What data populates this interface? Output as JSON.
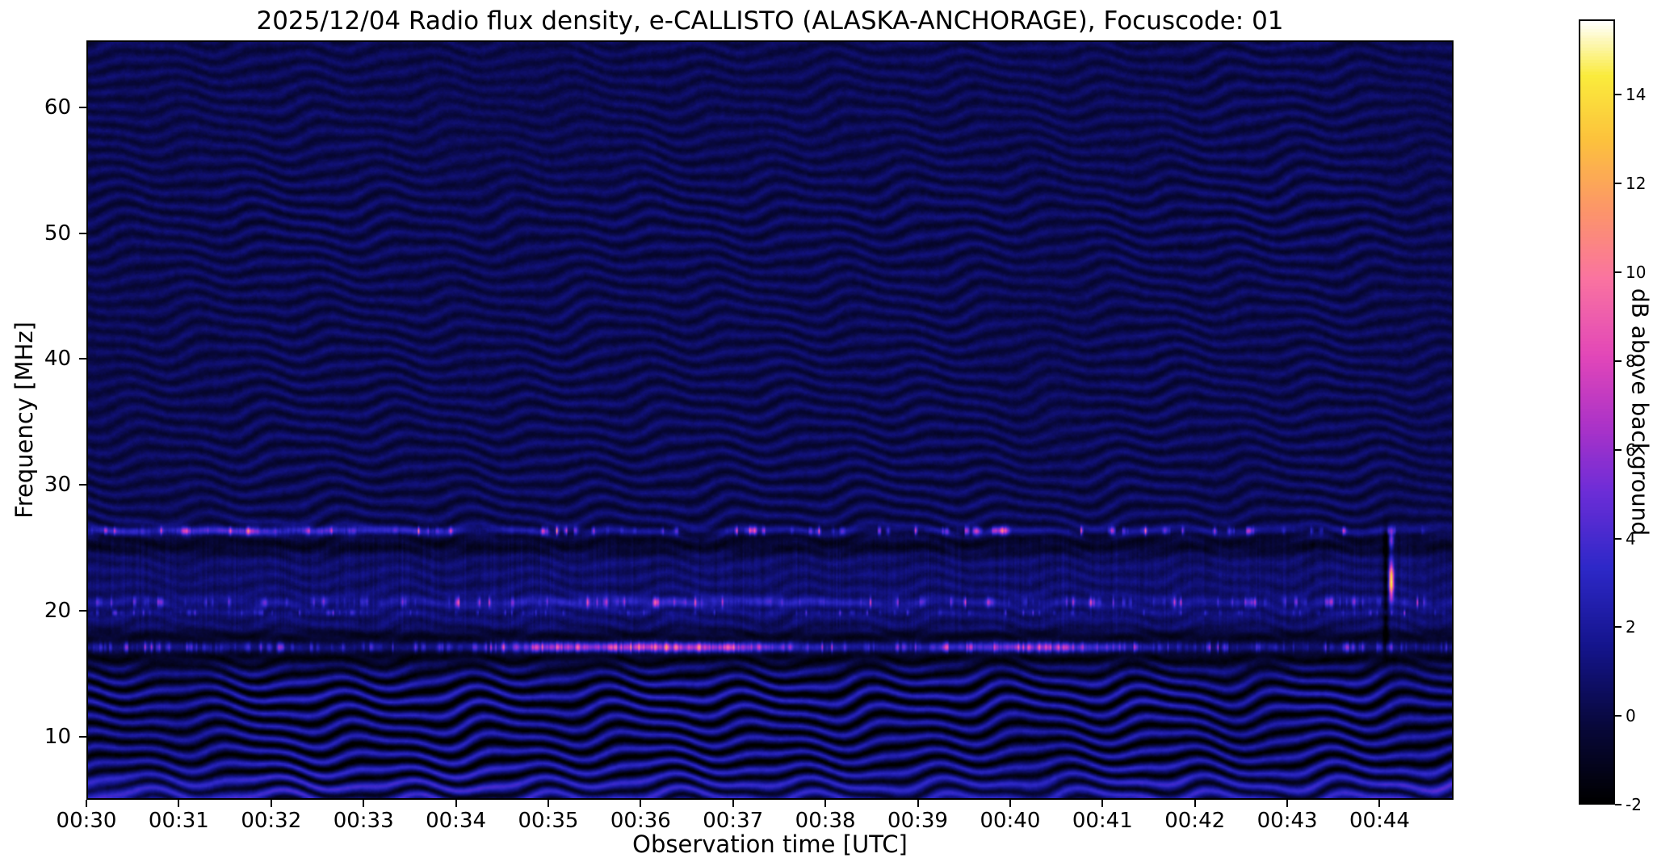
{
  "figure": {
    "date": "2025/12/04",
    "instrument": "e-CALLISTO",
    "station": "ALASKA-ANCHORAGE",
    "focuscode": "01",
    "background_color": "#ffffff"
  },
  "chart_data": {
    "type": "heatmap",
    "title": "2025/12/04  Radio flux density, e-CALLISTO (ALASKA-ANCHORAGE), Focuscode: 01",
    "xlabel": "Observation time [UTC]",
    "ylabel": "Frequency [MHz]",
    "colorbar_label": "dB above background",
    "x_start_utc": "00:30",
    "x_duration_s": 888,
    "x_ticks": [
      {
        "label": "00:30",
        "s": 0
      },
      {
        "label": "00:31",
        "s": 60
      },
      {
        "label": "00:32",
        "s": 120
      },
      {
        "label": "00:33",
        "s": 180
      },
      {
        "label": "00:34",
        "s": 240
      },
      {
        "label": "00:35",
        "s": 300
      },
      {
        "label": "00:36",
        "s": 360
      },
      {
        "label": "00:37",
        "s": 420
      },
      {
        "label": "00:38",
        "s": 480
      },
      {
        "label": "00:39",
        "s": 540
      },
      {
        "label": "00:40",
        "s": 600
      },
      {
        "label": "00:41",
        "s": 660
      },
      {
        "label": "00:42",
        "s": 720
      },
      {
        "label": "00:43",
        "s": 780
      },
      {
        "label": "00:44",
        "s": 840
      }
    ],
    "ylim": [
      5.0,
      65.3
    ],
    "y_ticks": [
      10,
      20,
      30,
      40,
      50,
      60
    ],
    "clim": [
      -2,
      15.7
    ],
    "colorbar_ticks": [
      14,
      12,
      10,
      8,
      6,
      4,
      2,
      0,
      -2
    ],
    "colormap_stops": [
      [
        0.0,
        "#000000"
      ],
      [
        0.1,
        "#08083c"
      ],
      [
        0.2,
        "#14148c"
      ],
      [
        0.3,
        "#2d28c8"
      ],
      [
        0.4,
        "#6e2dd7"
      ],
      [
        0.48,
        "#aa32c8"
      ],
      [
        0.57,
        "#e146b9"
      ],
      [
        0.67,
        "#fa73a0"
      ],
      [
        0.76,
        "#fc9668"
      ],
      [
        0.85,
        "#fcc23c"
      ],
      [
        0.93,
        "#faeb3c"
      ],
      [
        1.0,
        "#ffffff"
      ]
    ],
    "background": {
      "base_db": 0.25,
      "noise_db": 0.45,
      "fringe": {
        "spacing_mhz": 1.18,
        "amp_base": 0.42,
        "amp_lowfreq": 0.85,
        "amp_falloff_mhz": 20,
        "wobble": [
          [
            14,
            0.42,
            1.05,
            0.0
          ],
          [
            47,
            0.16,
            0.6,
            2.1
          ],
          [
            6.8,
            0.07,
            0.45,
            4.0
          ]
        ],
        "boosts": [
          [
            13.3,
            1.6,
            1.1
          ],
          [
            8.0,
            2.8,
            0.9
          ],
          [
            51.5,
            2.5,
            0.3
          ]
        ],
        "dead_zone": {
          "f_mhz": 17.0,
          "sigma": 1.0,
          "suppress": 0.85
        }
      }
    },
    "rfi_bands": [
      {
        "f_mhz": 26.3,
        "sigma": 0.22,
        "base": 1.0,
        "speckle_amp": 8.0,
        "speckle_period_s": 3.0,
        "thresh": 0.55,
        "pow": 2.2,
        "seed": 3,
        "bursts": [
          {
            "t_s": 70,
            "w_s": 80,
            "amp": 2.5
          },
          {
            "t_s": 170,
            "w_s": 60,
            "amp": 2.0
          }
        ]
      },
      {
        "f_mhz": 20.6,
        "sigma": 0.28,
        "base": 0.8,
        "speckle_amp": 6.0,
        "speckle_period_s": 2.2,
        "thresh": 0.5,
        "pow": 2.5,
        "seed": 7,
        "bursts": [
          {
            "t_s": 380,
            "w_s": 90,
            "amp": 2.0
          }
        ]
      },
      {
        "f_mhz": 19.75,
        "sigma": 0.16,
        "base": 0.35,
        "speckle_amp": 3.5,
        "speckle_period_s": 2.0,
        "thresh": 0.55,
        "pow": 2.5,
        "seed": 12,
        "bursts": []
      },
      {
        "f_mhz": 17.0,
        "sigma": 0.27,
        "base": 1.3,
        "speckle_amp": 5.0,
        "speckle_period_s": 1.6,
        "thresh": 0.35,
        "pow": 1.8,
        "seed": 21,
        "bursts": [
          {
            "t_s": 385,
            "w_s": 55,
            "amp": 7.0
          },
          {
            "t_s": 612,
            "w_s": 45,
            "amp": 5.0
          },
          {
            "t_s": 300,
            "w_s": 22,
            "amp": 3.5
          }
        ]
      }
    ],
    "dark_bands": [
      {
        "f_mhz": 25.15,
        "sigma": 0.55,
        "depth": 1.5
      },
      {
        "f_mhz": 16.2,
        "sigma": 0.45,
        "depth": 1.4
      },
      {
        "f_mhz": 17.8,
        "sigma": 0.4,
        "depth": 1.2
      }
    ],
    "haze_band": {
      "f_lo": 18.3,
      "f_hi": 25.9,
      "lift": 0.55,
      "stripe_amp": 0.7,
      "fringe_suppress": 0.55
    },
    "bottom_glow": {
      "f_mhz": 5.2,
      "sigma": 1.2,
      "amp": 1.15,
      "edge_amp": 0.9
    },
    "point_source": {
      "t_s": 849,
      "f_mhz": 22.3,
      "sigma_t_s": 1.1,
      "sigma_f_mhz": 1.0,
      "amp_db": 14,
      "dot_f_mhz": 25.6,
      "dot_sigma_f_mhz": 0.5,
      "dot_amp_db": 6,
      "dark_line": {
        "t_s": 845.5,
        "sigma_t_s": 1.3,
        "depth_db": 2.4,
        "f_lo": 16.8,
        "f_hi": 26.6
      }
    }
  }
}
